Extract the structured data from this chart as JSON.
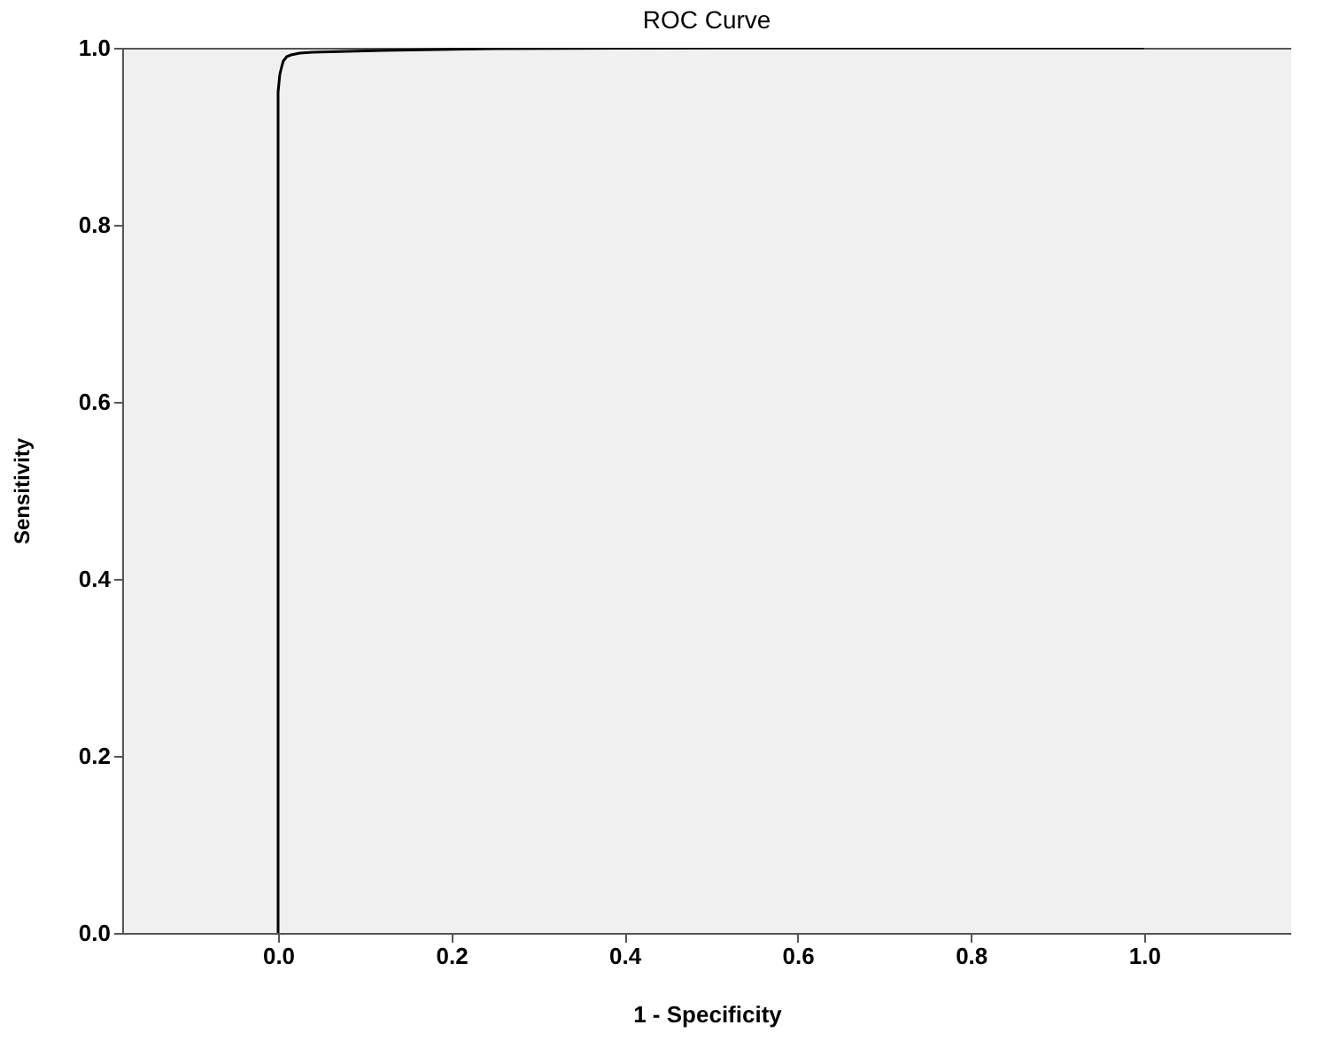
{
  "chart_data": {
    "type": "line",
    "title": "ROC Curve",
    "xlabel": "1 - Specificity",
    "ylabel": "Sensitivity",
    "x": [
      0,
      0,
      0.001,
      0.002,
      0.004,
      0.006,
      0.01,
      0.015,
      0.025,
      0.04,
      0.08,
      0.12,
      0.25,
      0.5,
      1
    ],
    "series": [
      {
        "color": "#000000",
        "values": [
          0,
          0.95,
          0.96,
          0.97,
          0.978,
          0.985,
          0.99,
          0.992,
          0.994,
          0.995,
          0.996,
          0.997,
          0.999,
          1,
          1
        ]
      }
    ],
    "xlim": [
      -0.18,
      1.17
    ],
    "ylim": [
      0,
      1
    ],
    "xticks": [
      {
        "value": 0,
        "label": "0.0"
      },
      {
        "value": 0.2,
        "label": "0.2"
      },
      {
        "value": 0.4,
        "label": "0.4"
      },
      {
        "value": 0.6,
        "label": "0.6"
      },
      {
        "value": 0.8,
        "label": "0.8"
      },
      {
        "value": 1,
        "label": "1.0"
      }
    ],
    "yticks": [
      {
        "value": 0,
        "label": "0.0"
      },
      {
        "value": 0.2,
        "label": "0.2"
      },
      {
        "value": 0.4,
        "label": "0.4"
      },
      {
        "value": 0.6,
        "label": "0.6"
      },
      {
        "value": 0.8,
        "label": "0.8"
      },
      {
        "value": 1,
        "label": "1.0"
      }
    ],
    "grid": false,
    "marker": "none",
    "line_style": "solid"
  }
}
